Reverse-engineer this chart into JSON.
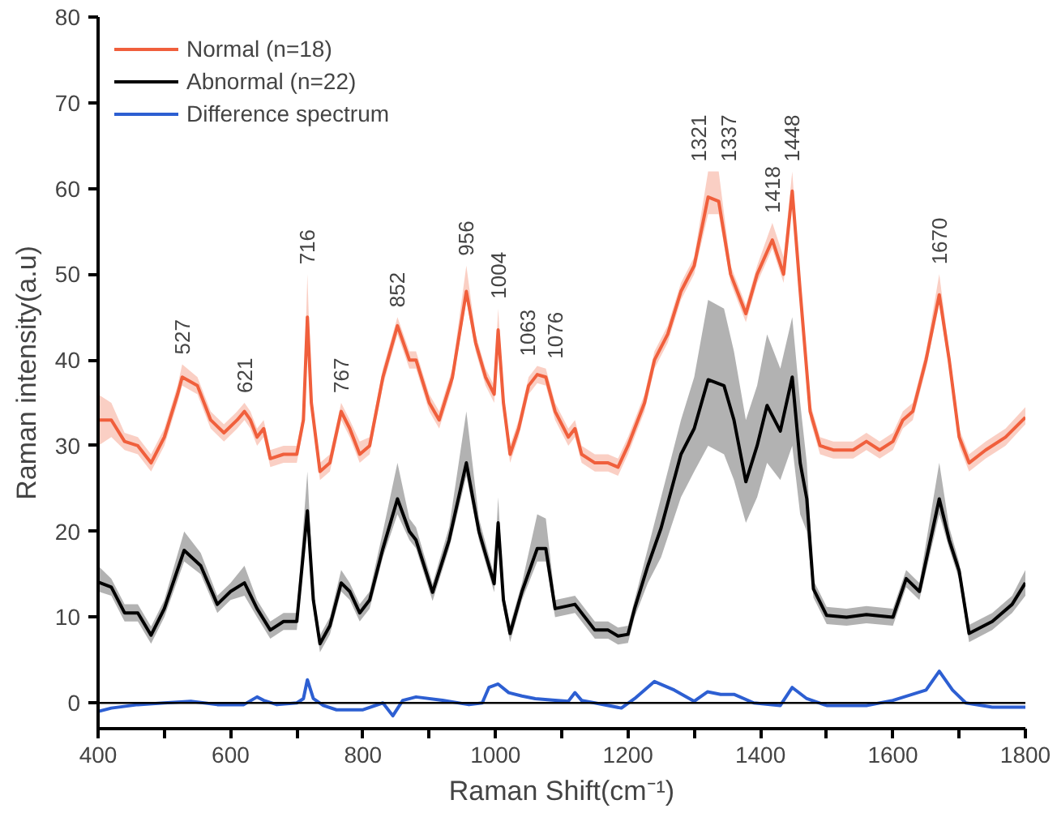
{
  "chart_data": {
    "type": "line",
    "xlabel": "Raman Shift(cm⁻¹)",
    "ylabel": "Raman intensity(a.u)",
    "xlim": [
      400,
      1800
    ],
    "ylim": [
      -3,
      80
    ],
    "xticks": [
      400,
      {
        "value": 500,
        "label": null
      },
      600,
      {
        "value": 700,
        "label": null
      },
      800,
      {
        "value": 900,
        "label": null
      },
      1000,
      {
        "value": 1100,
        "label": null
      },
      1200,
      {
        "value": 1300,
        "label": null
      },
      1400,
      {
        "value": 1500,
        "label": null
      },
      1600,
      {
        "value": 1700,
        "label": null
      },
      1800
    ],
    "yticks": [
      0,
      10,
      20,
      30,
      40,
      50,
      60,
      70,
      80
    ],
    "grid": false,
    "legend": "top left",
    "marker": "none",
    "line_style": "solid",
    "ref_lines": [
      {
        "axis": "y",
        "value": 0,
        "label": null,
        "color": "#000000"
      }
    ],
    "series": [
      {
        "name": "Normal (n=18)",
        "color": "#f05f3c",
        "x": [
          400,
          420,
          440,
          460,
          480,
          500,
          520,
          527,
          550,
          570,
          590,
          610,
          621,
          630,
          640,
          650,
          660,
          680,
          700,
          710,
          716,
          722,
          735,
          750,
          767,
          780,
          795,
          810,
          830,
          852,
          870,
          880,
          900,
          915,
          935,
          956,
          970,
          985,
          998,
          1004,
          1012,
          1022,
          1035,
          1050,
          1063,
          1076,
          1090,
          1110,
          1120,
          1130,
          1150,
          1170,
          1185,
          1200,
          1210,
          1225,
          1240,
          1260,
          1280,
          1300,
          1321,
          1337,
          1355,
          1378,
          1395,
          1418,
          1435,
          1448,
          1460,
          1475,
          1490,
          1510,
          1540,
          1560,
          1580,
          1600,
          1615,
          1630,
          1650,
          1670,
          1685,
          1700,
          1715,
          1740,
          1770,
          1800
        ],
        "values": [
          33,
          33,
          30.5,
          30,
          28,
          31,
          36,
          38,
          37,
          33,
          31.5,
          33,
          34,
          33,
          31,
          32,
          28.5,
          29,
          29,
          33,
          45,
          35,
          27,
          28,
          34,
          32,
          29,
          30,
          38,
          44,
          40,
          40,
          35,
          33,
          38,
          48,
          42,
          38,
          36,
          43.5,
          35,
          29,
          32,
          37,
          38.3,
          38,
          34,
          31,
          32,
          29,
          28,
          28,
          27.5,
          30,
          32,
          35,
          40,
          43,
          48,
          51,
          59,
          58.5,
          50,
          45.4,
          50,
          54,
          50,
          59.7,
          48,
          34,
          30,
          29.5,
          29.5,
          30.5,
          29.5,
          30.5,
          33,
          34,
          40,
          47.6,
          40,
          31,
          28,
          29.5,
          31,
          33.3
        ],
        "lower": [
          30,
          31,
          29.5,
          29,
          27,
          30,
          35,
          37,
          36,
          32,
          30.5,
          32,
          33,
          32,
          30,
          31,
          27.5,
          28,
          28,
          32,
          43,
          34,
          26,
          27,
          33,
          31,
          28,
          29,
          37,
          43,
          39,
          39,
          34,
          32,
          37,
          47,
          41,
          37,
          35,
          42,
          34,
          28,
          31,
          36,
          37.3,
          37,
          33,
          30,
          31,
          28,
          27,
          27,
          26.5,
          29,
          31,
          34,
          39,
          42,
          47,
          50,
          57,
          57,
          49,
          44.4,
          49,
          53,
          49,
          58.5,
          47,
          33,
          29,
          28.5,
          28.5,
          29.5,
          28.5,
          29.5,
          32,
          33,
          39,
          46.5,
          39,
          30,
          27,
          28.5,
          30,
          32.5
        ],
        "upper": [
          36,
          35,
          31.5,
          31,
          29,
          32,
          37,
          39.5,
          38,
          34,
          32.5,
          34,
          35,
          34,
          32,
          33,
          29.5,
          30,
          30,
          34,
          50,
          36,
          28,
          29,
          35,
          33,
          30.5,
          31,
          39,
          45,
          41,
          41,
          36,
          34,
          39,
          51,
          43,
          39,
          37,
          46,
          36,
          30,
          33,
          38,
          39.3,
          39,
          35,
          32,
          33,
          30,
          29,
          29,
          28.5,
          31,
          33,
          36,
          41,
          44,
          49,
          52,
          62,
          62,
          51,
          46.4,
          51,
          56,
          52,
          62,
          49,
          35,
          31,
          30.5,
          30.5,
          31.5,
          30.5,
          31.5,
          34,
          35,
          41,
          50,
          41,
          32,
          29,
          30.5,
          32,
          34.5
        ]
      },
      {
        "name": "Abnormal (n=22)",
        "color": "#000000",
        "x": [
          400,
          420,
          440,
          460,
          480,
          500,
          530,
          555,
          580,
          600,
          621,
          640,
          660,
          680,
          700,
          716,
          725,
          735,
          750,
          767,
          780,
          795,
          810,
          830,
          852,
          870,
          880,
          905,
          930,
          956,
          975,
          998,
          1004,
          1012,
          1022,
          1040,
          1063,
          1076,
          1090,
          1120,
          1150,
          1170,
          1185,
          1200,
          1210,
          1230,
          1250,
          1280,
          1300,
          1321,
          1345,
          1360,
          1378,
          1395,
          1410,
          1430,
          1448,
          1460,
          1470,
          1480,
          1500,
          1530,
          1560,
          1600,
          1620,
          1640,
          1670,
          1685,
          1700,
          1715,
          1750,
          1780,
          1800
        ],
        "values": [
          14.1,
          13.5,
          10.5,
          10.5,
          7.9,
          11,
          17.8,
          16,
          11.5,
          13,
          14,
          11,
          8.5,
          9.5,
          9.5,
          22.4,
          12,
          6.9,
          9,
          14,
          13,
          10.5,
          12,
          18,
          23.8,
          20,
          19,
          12.9,
          19,
          28,
          20,
          13.9,
          21,
          12,
          8.1,
          13,
          18,
          18,
          11,
          11.5,
          8.5,
          8.5,
          7.8,
          8,
          11,
          16,
          20.4,
          29,
          32,
          37.7,
          37,
          33,
          25.8,
          30,
          34.7,
          31.7,
          38,
          28,
          23.8,
          13.3,
          10.2,
          10,
          10.3,
          10,
          14.5,
          13,
          23.8,
          19,
          15.4,
          8.1,
          9.5,
          11.5,
          14
        ],
        "lower": [
          13,
          12.5,
          9.5,
          9.5,
          6.9,
          10,
          16.5,
          15,
          10.5,
          12,
          12.5,
          10,
          7.5,
          8.5,
          8.5,
          21,
          11,
          5.9,
          8,
          13,
          12,
          9.5,
          11,
          17,
          22,
          19,
          18,
          11.9,
          18,
          26.5,
          19,
          12.9,
          20,
          11,
          7.1,
          12,
          16.5,
          16.5,
          10,
          10.5,
          7.5,
          7.5,
          6.8,
          7,
          10,
          14,
          17,
          24,
          27,
          30,
          29,
          26,
          21,
          24,
          28,
          26,
          30,
          22,
          20,
          12.3,
          9.2,
          9,
          9.3,
          9,
          13.5,
          12,
          22,
          18,
          14.4,
          7.1,
          8.5,
          10.5,
          12.5
        ],
        "upper": [
          16,
          14.5,
          11.5,
          11.5,
          8.9,
          12,
          20,
          17.5,
          12.5,
          14,
          16,
          12,
          9.5,
          10.5,
          10.5,
          27,
          13,
          7.9,
          10,
          15.5,
          14,
          11.5,
          13,
          20,
          28,
          21.5,
          20.5,
          13.9,
          20.5,
          34,
          21.5,
          14.9,
          24,
          13,
          9.1,
          14,
          22,
          21.5,
          12,
          12.5,
          9.5,
          9.5,
          8.8,
          9,
          12,
          18,
          24,
          33,
          38,
          47,
          46,
          41,
          33,
          37,
          43,
          39,
          45,
          35,
          28,
          14.3,
          11.2,
          11,
          11.3,
          11,
          15.5,
          14,
          28,
          20.5,
          16.4,
          9.1,
          10.5,
          12.5,
          15.5
        ]
      },
      {
        "name": "Difference spectrum",
        "color": "#2d5fd2",
        "x": [
          400,
          420,
          460,
          500,
          540,
          580,
          620,
          640,
          650,
          670,
          700,
          710,
          716,
          725,
          740,
          760,
          800,
          830,
          845,
          860,
          880,
          920,
          960,
          980,
          990,
          1004,
          1020,
          1040,
          1060,
          1090,
          1110,
          1120,
          1130,
          1150,
          1190,
          1210,
          1240,
          1270,
          1300,
          1320,
          1340,
          1360,
          1390,
          1430,
          1448,
          1470,
          1500,
          1560,
          1600,
          1650,
          1670,
          1690,
          1710,
          1750,
          1800
        ],
        "values": [
          -1,
          -0.6,
          -0.2,
          0,
          0.2,
          -0.2,
          -0.2,
          0.7,
          0.3,
          -0.2,
          0,
          0.5,
          2.7,
          0.5,
          -0.3,
          -0.8,
          -0.8,
          0,
          -1.5,
          0.3,
          0.7,
          0.3,
          -0.2,
          0,
          1.8,
          2.2,
          1.2,
          0.8,
          0.5,
          0.3,
          0.2,
          1.2,
          0.3,
          0,
          -0.6,
          0.5,
          2.5,
          1.5,
          0.2,
          1.3,
          1,
          1,
          0,
          -0.3,
          1.8,
          0.5,
          -0.3,
          -0.3,
          0.3,
          1.5,
          3.7,
          1.5,
          0,
          -0.5,
          -0.5
        ]
      }
    ],
    "annotations": [
      {
        "text": "527",
        "x": 527,
        "y": 38
      },
      {
        "text": "621",
        "x": 621,
        "y": 34
      },
      {
        "text": "716",
        "x": 716,
        "y": 45
      },
      {
        "text": "767",
        "x": 767,
        "y": 34
      },
      {
        "text": "852",
        "x": 852,
        "y": 44
      },
      {
        "text": "956",
        "x": 956,
        "y": 48
      },
      {
        "text": "1004",
        "x": 1004,
        "y": 43.5
      },
      {
        "text": "1063",
        "x": 1063,
        "y": 38.3
      },
      {
        "text": "1076",
        "x": 1076,
        "y": 38
      },
      {
        "text": "1321",
        "x": 1321,
        "y": 59
      },
      {
        "text": "1337",
        "x": 1337,
        "y": 58.5
      },
      {
        "text": "1418",
        "x": 1418,
        "y": 54
      },
      {
        "text": "1448",
        "x": 1448,
        "y": 59.7
      },
      {
        "text": "1670",
        "x": 1670,
        "y": 47.6
      }
    ]
  }
}
